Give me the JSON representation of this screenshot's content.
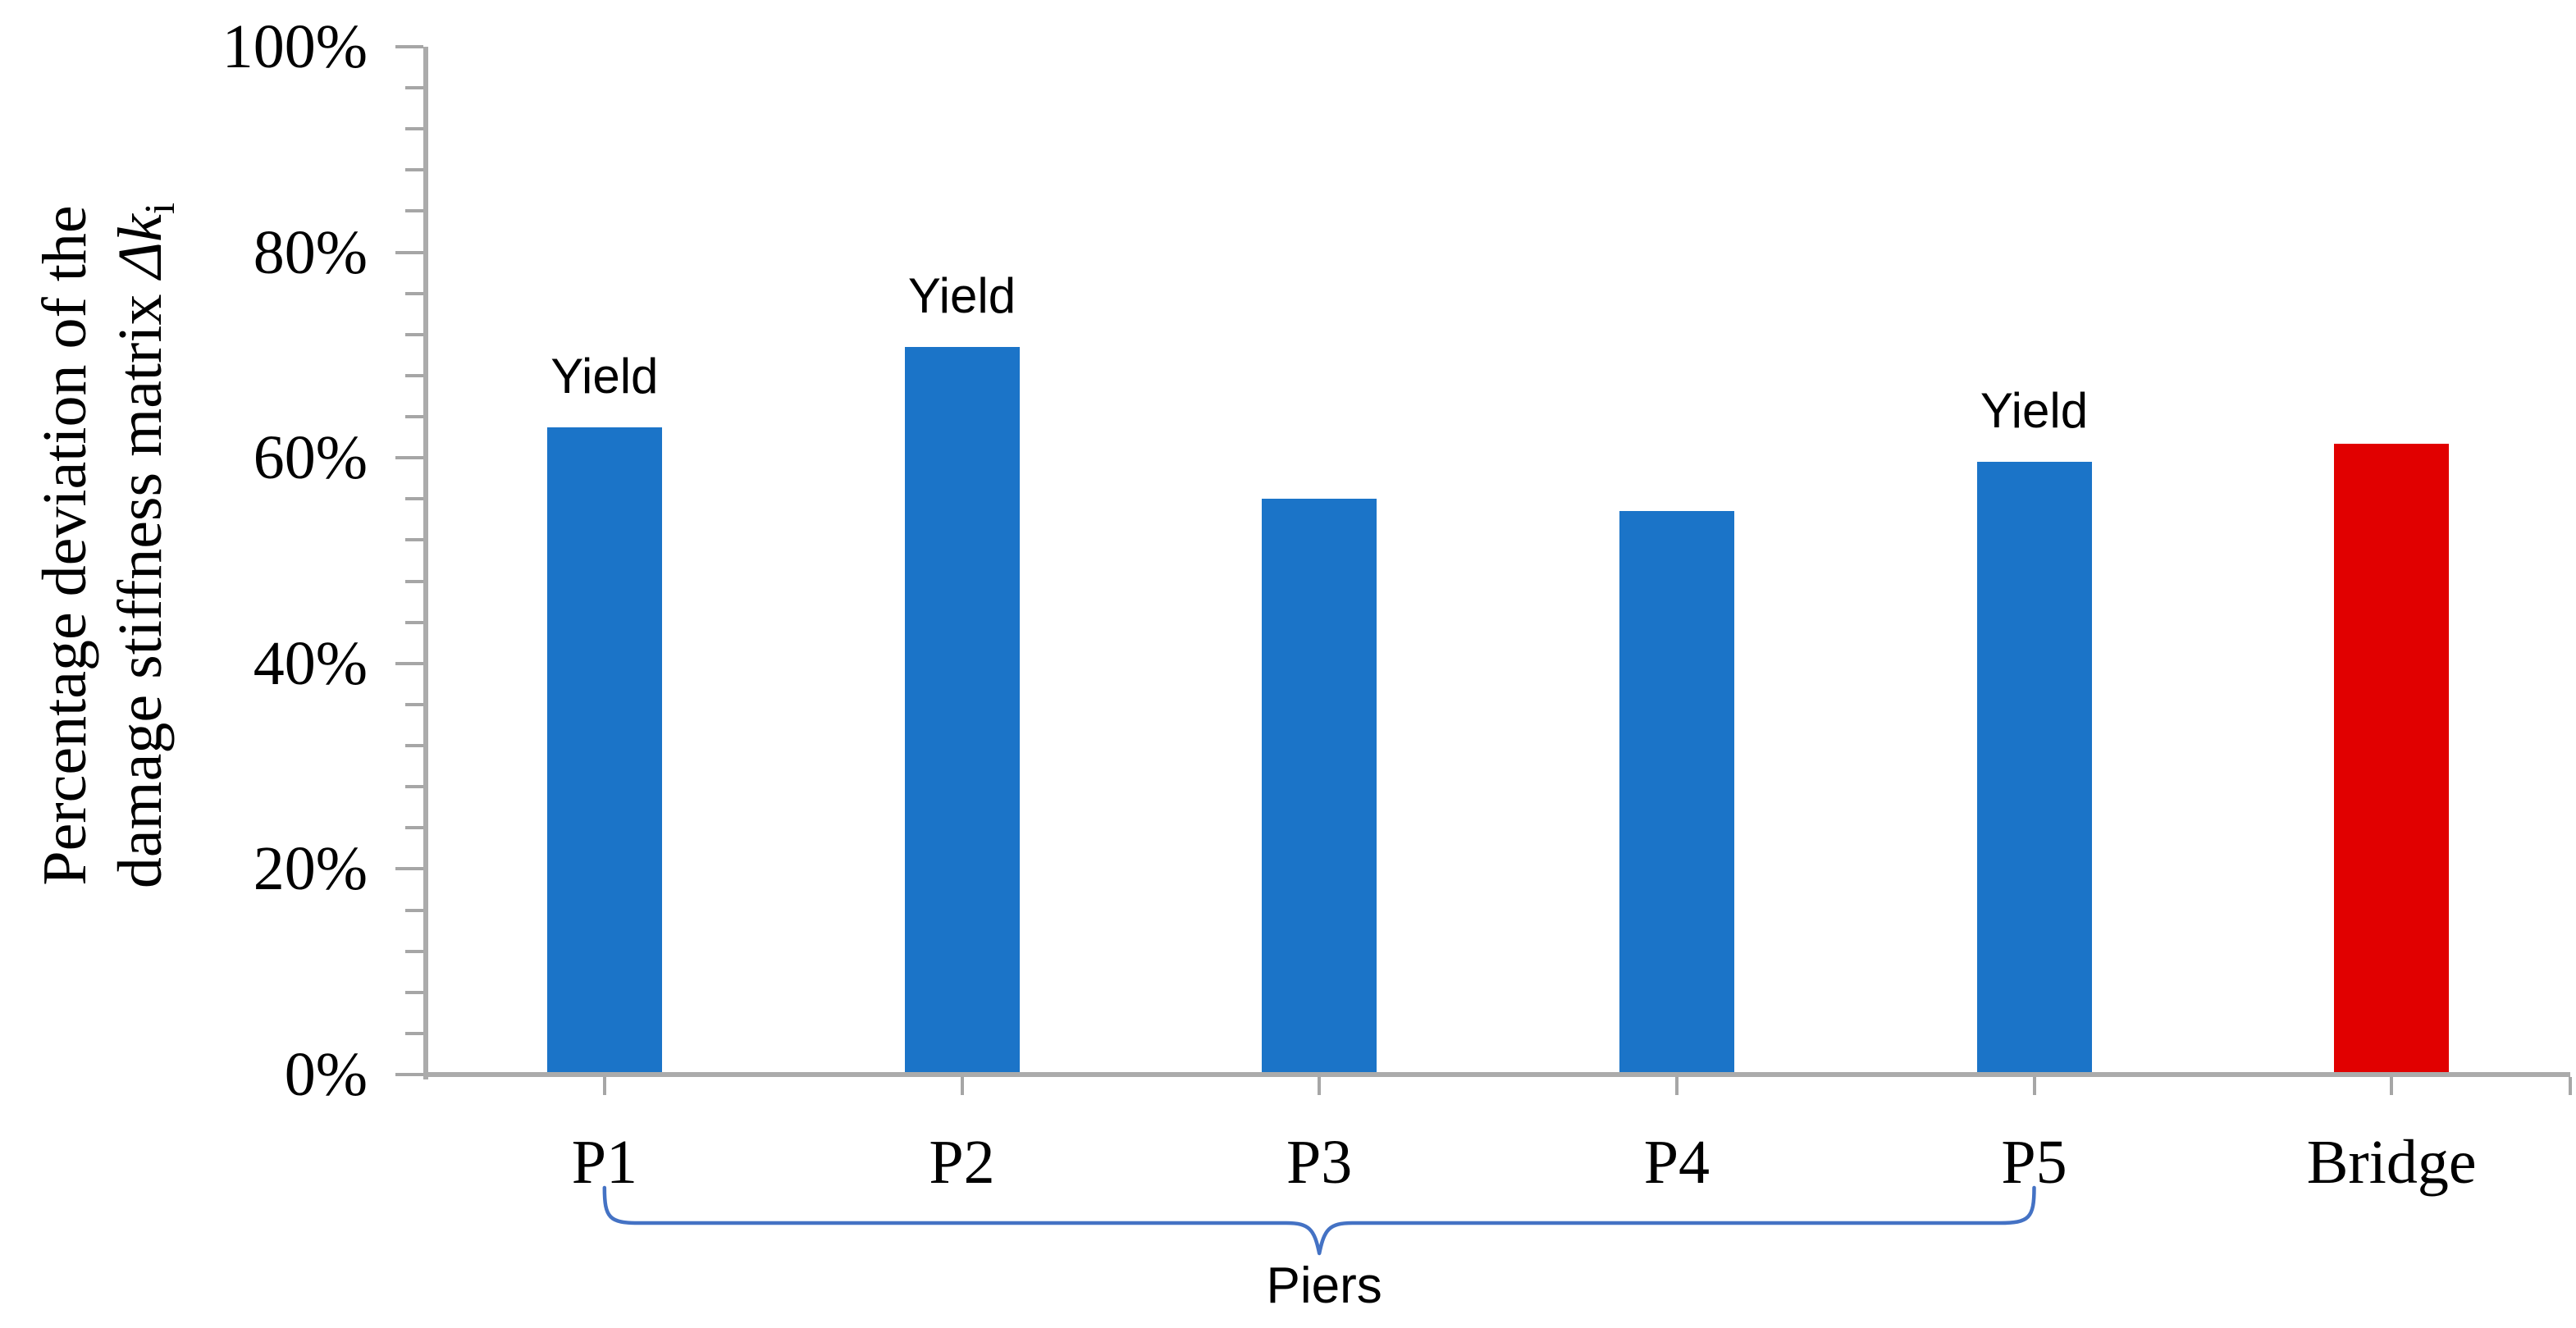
{
  "figure": {
    "background": "#ffffff"
  },
  "chart_data": {
    "type": "bar",
    "categories": [
      "P1",
      "P2",
      "P3",
      "P4",
      "P5",
      "Bridge"
    ],
    "values": [
      63,
      70.8,
      56,
      54.8,
      59.6,
      61.4
    ],
    "bar_colors": [
      "#1b74c8",
      "#1b74c8",
      "#1b74c8",
      "#1b74c8",
      "#1b74c8",
      "#e10000"
    ],
    "title": "",
    "xlabel": "",
    "ylabel": "Percentage deviation of the damage stiffness matrix Δki",
    "ylim": [
      0,
      100
    ],
    "grid": "off",
    "legend": "none",
    "y_tick_labels": [
      "0%",
      "20%",
      "40%",
      "60%",
      "80%",
      "100%"
    ],
    "y_major_unit_pct": 20,
    "y_minor_unit_pct": 4,
    "annotations": [
      {
        "category": "P1",
        "text": "Yield"
      },
      {
        "category": "P2",
        "text": "Yield"
      },
      {
        "category": "P5",
        "text": "Yield"
      }
    ],
    "group_bracket": {
      "from": "P1",
      "to": "P5",
      "label": "Piers"
    }
  },
  "y_axis_title": {
    "line1": "Percentage deviation of the",
    "line2_text": "damage stiffness matrix ",
    "line2_symbol": "Δk",
    "line2_subscript": "i"
  },
  "colors": {
    "bar_blue": "#1b74c8",
    "bar_red": "#e10000",
    "brace_blue": "#4472c4",
    "axis_line": "#ababab",
    "tick_mark": "#a6a6a6",
    "text": "#000000"
  }
}
